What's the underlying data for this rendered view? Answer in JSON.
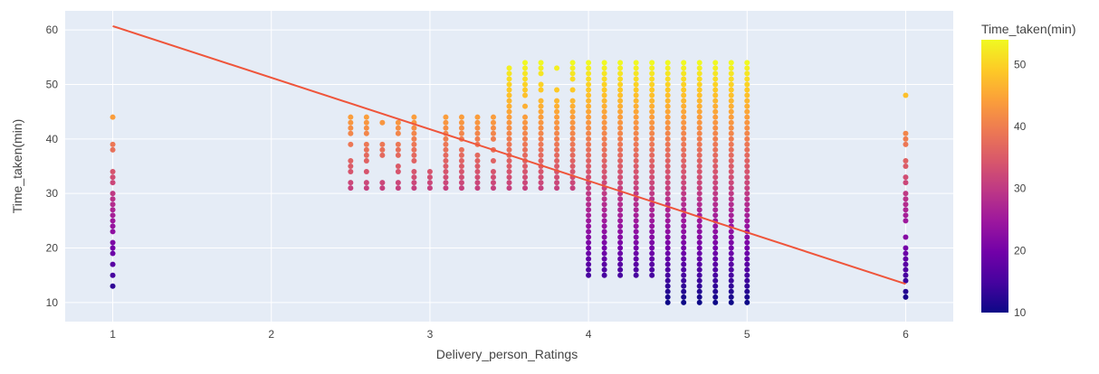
{
  "chart_data": {
    "type": "scatter",
    "xlabel": "Delivery_person_Ratings",
    "ylabel": "Time_taken(min)",
    "xlim": [
      0.7,
      6.3
    ],
    "ylim": [
      6.5,
      63.5
    ],
    "x_ticks": [
      1,
      2,
      3,
      4,
      5,
      6
    ],
    "y_ticks": [
      10,
      20,
      30,
      40,
      50,
      60
    ],
    "grid": true,
    "background_color": "#e5ecf6",
    "colorbar": {
      "title": "Time_taken(min)",
      "range": [
        10,
        54
      ],
      "ticks": [
        10,
        20,
        30,
        40,
        50
      ],
      "colorscale": "plasma",
      "colors": [
        "#0d0887",
        "#46039f",
        "#7201a8",
        "#9c179e",
        "#bd3786",
        "#d8576b",
        "#ed7953",
        "#fb9f3a",
        "#fdca26",
        "#f0f921"
      ]
    },
    "scatter_columns": [
      {
        "x": 1.0,
        "y": [
          13,
          15,
          17,
          19,
          20,
          21,
          23,
          24,
          25,
          26,
          27,
          28,
          29,
          30,
          32,
          33,
          34,
          38,
          39,
          44
        ]
      },
      {
        "x": 2.5,
        "y": [
          31,
          32,
          34,
          35,
          36,
          39,
          41,
          42,
          43,
          44
        ]
      },
      {
        "x": 2.6,
        "y": [
          31,
          32,
          34,
          36,
          37,
          38,
          39,
          41,
          42,
          43,
          44
        ]
      },
      {
        "x": 2.7,
        "y": [
          31,
          32,
          37,
          38,
          39,
          43
        ]
      },
      {
        "x": 2.8,
        "y": [
          31,
          32,
          34,
          35,
          37,
          38,
          39,
          41,
          42,
          43
        ]
      },
      {
        "x": 2.9,
        "y": [
          31,
          32,
          33,
          34,
          36,
          37,
          38,
          39,
          40,
          41,
          42,
          43,
          44
        ]
      },
      {
        "x": 3.0,
        "y": [
          31,
          32,
          33,
          34
        ]
      },
      {
        "x": 3.1,
        "y": [
          31,
          32,
          33,
          34,
          35,
          36,
          37,
          38,
          39,
          40,
          41,
          42,
          43,
          44
        ]
      },
      {
        "x": 3.2,
        "y": [
          31,
          32,
          33,
          34,
          35,
          36,
          37,
          38,
          40,
          41,
          42,
          43,
          44
        ]
      },
      {
        "x": 3.3,
        "y": [
          31,
          32,
          33,
          34,
          35,
          36,
          37,
          39,
          40,
          41,
          42,
          43,
          44
        ]
      },
      {
        "x": 3.4,
        "y": [
          31,
          32,
          33,
          34,
          36,
          38,
          40,
          41,
          42,
          43,
          44
        ]
      },
      {
        "x": 3.5,
        "y": [
          31,
          32,
          33,
          34,
          35,
          36,
          37,
          38,
          39,
          40,
          41,
          42,
          43,
          44,
          45,
          46,
          47,
          48,
          49,
          50,
          51,
          52,
          53
        ]
      },
      {
        "x": 3.6,
        "y": [
          31,
          32,
          33,
          34,
          35,
          36,
          37,
          38,
          39,
          40,
          41,
          42,
          43,
          44,
          46,
          48,
          49,
          50,
          51,
          52,
          53,
          54
        ]
      },
      {
        "x": 3.7,
        "y": [
          31,
          32,
          33,
          34,
          35,
          36,
          37,
          38,
          39,
          40,
          41,
          42,
          43,
          44,
          45,
          46,
          47,
          49,
          50,
          52,
          53,
          54
        ]
      },
      {
        "x": 3.8,
        "y": [
          31,
          32,
          33,
          34,
          35,
          36,
          37,
          38,
          39,
          40,
          41,
          42,
          43,
          44,
          45,
          46,
          47,
          49,
          53
        ]
      },
      {
        "x": 3.9,
        "y": [
          31,
          32,
          33,
          34,
          35,
          36,
          37,
          38,
          39,
          40,
          41,
          42,
          43,
          44,
          45,
          46,
          47,
          49,
          51,
          52,
          53,
          54
        ]
      },
      {
        "x": 4.0,
        "y": [
          15,
          16,
          17,
          18,
          19,
          20,
          21,
          22,
          23,
          24,
          25,
          26,
          27,
          28,
          29,
          30,
          31,
          32,
          33,
          34,
          35,
          36,
          37,
          38,
          39,
          40,
          41,
          42,
          43,
          44,
          45,
          46,
          47,
          48,
          49,
          50,
          51,
          52,
          53,
          54
        ]
      },
      {
        "x": 4.1,
        "y": [
          15,
          16,
          17,
          18,
          19,
          20,
          21,
          22,
          23,
          24,
          25,
          26,
          27,
          28,
          29,
          30,
          31,
          32,
          33,
          34,
          35,
          36,
          37,
          38,
          39,
          40,
          41,
          42,
          43,
          44,
          45,
          46,
          47,
          48,
          49,
          50,
          51,
          52,
          53,
          54
        ]
      },
      {
        "x": 4.2,
        "y": [
          15,
          16,
          17,
          18,
          19,
          20,
          21,
          22,
          23,
          24,
          25,
          26,
          27,
          28,
          29,
          30,
          31,
          32,
          33,
          34,
          35,
          36,
          37,
          38,
          39,
          40,
          41,
          42,
          43,
          44,
          45,
          46,
          47,
          48,
          49,
          50,
          51,
          52,
          53,
          54
        ]
      },
      {
        "x": 4.3,
        "y": [
          15,
          16,
          17,
          18,
          19,
          20,
          21,
          22,
          23,
          24,
          25,
          26,
          27,
          28,
          29,
          30,
          31,
          32,
          33,
          34,
          35,
          36,
          37,
          38,
          39,
          40,
          41,
          42,
          43,
          44,
          45,
          46,
          47,
          48,
          49,
          50,
          51,
          52,
          53,
          54
        ]
      },
      {
        "x": 4.4,
        "y": [
          15,
          16,
          17,
          18,
          19,
          20,
          21,
          22,
          23,
          24,
          25,
          26,
          27,
          28,
          29,
          30,
          31,
          32,
          33,
          34,
          35,
          36,
          37,
          38,
          39,
          40,
          41,
          42,
          43,
          44,
          45,
          46,
          47,
          48,
          49,
          50,
          51,
          52,
          53,
          54
        ]
      },
      {
        "x": 4.5,
        "y": [
          10,
          11,
          12,
          13,
          14,
          15,
          16,
          17,
          18,
          19,
          20,
          21,
          22,
          23,
          24,
          25,
          26,
          27,
          28,
          29,
          30,
          31,
          32,
          33,
          34,
          35,
          36,
          37,
          38,
          39,
          40,
          41,
          42,
          43,
          44,
          45,
          46,
          47,
          48,
          49,
          50,
          51,
          52,
          53,
          54
        ]
      },
      {
        "x": 4.6,
        "y": [
          10,
          11,
          12,
          13,
          14,
          15,
          16,
          17,
          18,
          19,
          20,
          21,
          22,
          23,
          24,
          25,
          26,
          27,
          28,
          29,
          30,
          31,
          32,
          33,
          34,
          35,
          36,
          37,
          38,
          39,
          40,
          41,
          42,
          43,
          44,
          45,
          46,
          47,
          48,
          49,
          50,
          51,
          52,
          53,
          54
        ]
      },
      {
        "x": 4.7,
        "y": [
          10,
          11,
          12,
          13,
          14,
          15,
          16,
          17,
          18,
          19,
          20,
          21,
          22,
          23,
          24,
          25,
          26,
          27,
          28,
          29,
          30,
          31,
          32,
          33,
          34,
          35,
          36,
          37,
          38,
          39,
          40,
          41,
          42,
          43,
          44,
          45,
          46,
          47,
          48,
          49,
          50,
          51,
          52,
          53,
          54
        ]
      },
      {
        "x": 4.8,
        "y": [
          10,
          11,
          12,
          13,
          14,
          15,
          16,
          17,
          18,
          19,
          20,
          21,
          22,
          23,
          24,
          25,
          26,
          27,
          28,
          29,
          30,
          31,
          32,
          33,
          34,
          35,
          36,
          37,
          38,
          39,
          40,
          41,
          42,
          43,
          44,
          45,
          46,
          47,
          48,
          49,
          50,
          51,
          52,
          53,
          54
        ]
      },
      {
        "x": 4.9,
        "y": [
          10,
          11,
          12,
          13,
          14,
          15,
          16,
          17,
          18,
          19,
          20,
          21,
          22,
          23,
          24,
          25,
          26,
          27,
          28,
          29,
          30,
          31,
          32,
          33,
          34,
          35,
          36,
          37,
          38,
          39,
          40,
          41,
          42,
          43,
          44,
          45,
          46,
          47,
          48,
          49,
          50,
          51,
          52,
          53,
          54
        ]
      },
      {
        "x": 5.0,
        "y": [
          10,
          11,
          12,
          13,
          14,
          15,
          16,
          17,
          18,
          19,
          20,
          21,
          22,
          23,
          24,
          25,
          26,
          27,
          28,
          29,
          30,
          31,
          32,
          33,
          34,
          35,
          36,
          37,
          38,
          39,
          40,
          41,
          42,
          43,
          44,
          45,
          46,
          47,
          48,
          49,
          50,
          51,
          52,
          53,
          54
        ]
      },
      {
        "x": 6.0,
        "y": [
          11,
          12,
          14,
          15,
          16,
          17,
          18,
          19,
          20,
          22,
          25,
          26,
          27,
          28,
          29,
          30,
          32,
          33,
          35,
          36,
          39,
          40,
          41,
          48
        ]
      }
    ],
    "trendline": {
      "x": [
        1,
        6
      ],
      "y": [
        60.7,
        13.4
      ],
      "color": "#ef553b"
    }
  }
}
